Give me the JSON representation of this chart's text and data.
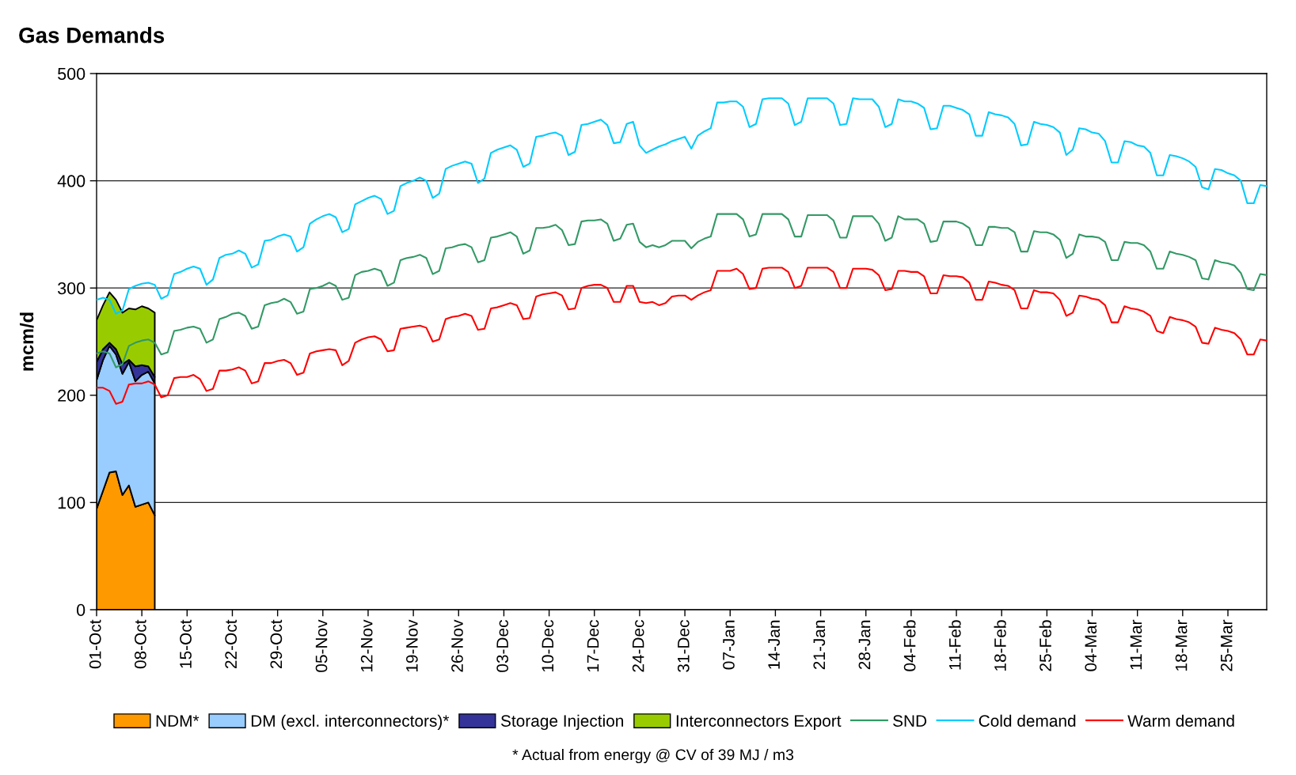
{
  "chart_data": {
    "type": "area",
    "stacked": true,
    "title": "Gas Demands",
    "ylabel": "mcm/d",
    "annotations": [
      "* Actual from energy @ CV of 39 MJ / m3"
    ],
    "categories": [
      "01-Oct",
      null,
      null,
      null,
      null,
      null,
      null,
      "08-Oct",
      null,
      null,
      null,
      null,
      null,
      null,
      "15-Oct",
      null,
      null,
      null,
      null,
      null,
      null,
      "22-Oct",
      null,
      null,
      null,
      null,
      null,
      null,
      "29-Oct",
      null,
      null,
      null,
      null,
      null,
      null,
      "05-Nov",
      null,
      null,
      null,
      null,
      null,
      null,
      "12-Nov",
      null,
      null,
      null,
      null,
      null,
      null,
      "19-Nov",
      null,
      null,
      null,
      null,
      null,
      null,
      "26-Nov",
      null,
      null,
      null,
      null,
      null,
      null,
      "03-Dec",
      null,
      null,
      null,
      null,
      null,
      null,
      "10-Dec",
      null,
      null,
      null,
      null,
      null,
      null,
      "17-Dec",
      null,
      null,
      null,
      null,
      null,
      null,
      "24-Dec",
      null,
      null,
      null,
      null,
      null,
      null,
      "31-Dec",
      null,
      null,
      null,
      null,
      null,
      null,
      "07-Jan",
      null,
      null,
      null,
      null,
      null,
      null,
      "14-Jan",
      null,
      null,
      null,
      null,
      null,
      null,
      "21-Jan",
      null,
      null,
      null,
      null,
      null,
      null,
      "28-Jan",
      null,
      null,
      null,
      null,
      null,
      null,
      "04-Feb",
      null,
      null,
      null,
      null,
      null,
      null,
      "11-Feb",
      null,
      null,
      null,
      null,
      null,
      null,
      "18-Feb",
      null,
      null,
      null,
      null,
      null,
      null,
      "25-Feb",
      null,
      null,
      null,
      null,
      null,
      null,
      "04-Mar",
      null,
      null,
      null,
      null,
      null,
      null,
      "11-Mar",
      null,
      null,
      null,
      null,
      null,
      null,
      "18-Mar",
      null,
      null,
      null,
      null,
      null,
      null,
      "25-Mar",
      null,
      null,
      null,
      null,
      null,
      null
    ],
    "ylim": [
      0,
      500
    ],
    "yticks": [
      0,
      100,
      200,
      300,
      400,
      500
    ],
    "grid": "y",
    "legend": "bottom",
    "series": [
      {
        "name": "NDM*",
        "color": "#ff9900",
        "values": [
          94,
          111,
          128,
          129,
          107,
          116,
          96,
          98,
          100,
          88,
          null,
          null,
          null,
          null,
          null,
          null,
          null,
          null,
          null,
          null,
          null,
          null,
          null,
          null,
          null,
          null,
          null,
          null,
          null,
          null,
          null,
          null,
          null,
          null,
          null,
          null,
          null,
          null,
          null,
          null,
          null,
          null,
          null,
          null,
          null,
          null,
          null,
          null,
          null,
          null,
          null,
          null,
          null,
          null,
          null,
          null,
          null,
          null,
          null,
          null,
          null,
          null,
          null,
          null,
          null,
          null,
          null,
          null,
          null,
          null,
          null,
          null,
          null,
          null,
          null,
          null,
          null,
          null,
          null,
          null,
          null,
          null,
          null,
          null,
          null,
          null,
          null,
          null,
          null,
          null,
          null,
          null,
          null,
          null,
          null,
          null,
          null,
          null,
          null,
          null,
          null,
          null,
          null,
          null,
          null,
          null,
          null,
          null,
          null,
          null,
          null,
          null,
          null,
          null,
          null,
          null,
          null,
          null,
          null,
          null,
          null,
          null,
          null,
          null,
          null,
          null,
          null,
          null,
          null,
          null,
          null,
          null,
          null,
          null,
          null,
          null,
          null,
          null,
          null,
          null,
          null,
          null,
          null,
          null,
          null,
          null,
          null,
          null,
          null,
          null,
          null,
          null,
          null,
          null,
          null,
          null,
          null,
          null,
          null,
          null,
          null,
          null,
          null,
          null,
          null,
          null,
          null,
          null,
          null,
          null,
          null,
          null,
          null,
          null,
          null,
          null,
          null,
          null,
          null,
          null,
          null,
          null
        ]
      },
      {
        "name": "DM (excl. interconnectors)*",
        "color": "#99ccff",
        "values": [
          120,
          122,
          118,
          109,
          113,
          115,
          117,
          121,
          122,
          123,
          null,
          null,
          null,
          null,
          null,
          null,
          null,
          null,
          null,
          null,
          null,
          null,
          null,
          null,
          null,
          null,
          null,
          null,
          null,
          null,
          null,
          null,
          null,
          null,
          null,
          null,
          null,
          null,
          null,
          null,
          null,
          null,
          null,
          null,
          null,
          null,
          null,
          null,
          null,
          null,
          null,
          null,
          null,
          null,
          null,
          null,
          null,
          null,
          null,
          null,
          null,
          null,
          null,
          null,
          null,
          null,
          null,
          null,
          null,
          null,
          null,
          null,
          null,
          null,
          null,
          null,
          null,
          null,
          null,
          null,
          null,
          null,
          null,
          null,
          null,
          null,
          null,
          null,
          null,
          null,
          null,
          null,
          null,
          null,
          null,
          null,
          null,
          null,
          null,
          null,
          null,
          null,
          null,
          null,
          null,
          null,
          null,
          null,
          null,
          null,
          null,
          null,
          null,
          null,
          null,
          null,
          null,
          null,
          null,
          null,
          null,
          null,
          null,
          null,
          null,
          null,
          null,
          null,
          null,
          null,
          null,
          null,
          null,
          null,
          null,
          null,
          null,
          null,
          null,
          null,
          null,
          null,
          null,
          null,
          null,
          null,
          null,
          null,
          null,
          null,
          null,
          null,
          null,
          null,
          null,
          null,
          null,
          null,
          null,
          null,
          null,
          null,
          null,
          null,
          null,
          null,
          null,
          null,
          null,
          null,
          null,
          null,
          null,
          null,
          null,
          null,
          null,
          null,
          null,
          null,
          null,
          null
        ]
      },
      {
        "name": "Storage Injection",
        "color": "#333399",
        "values": [
          17,
          10,
          3,
          5,
          9,
          2,
          14,
          9,
          5,
          6,
          null,
          null,
          null,
          null,
          null,
          null,
          null,
          null,
          null,
          null,
          null,
          null,
          null,
          null,
          null,
          null,
          null,
          null,
          null,
          null,
          null,
          null,
          null,
          null,
          null,
          null,
          null,
          null,
          null,
          null,
          null,
          null,
          null,
          null,
          null,
          null,
          null,
          null,
          null,
          null,
          null,
          null,
          null,
          null,
          null,
          null,
          null,
          null,
          null,
          null,
          null,
          null,
          null,
          null,
          null,
          null,
          null,
          null,
          null,
          null,
          null,
          null,
          null,
          null,
          null,
          null,
          null,
          null,
          null,
          null,
          null,
          null,
          null,
          null,
          null,
          null,
          null,
          null,
          null,
          null,
          null,
          null,
          null,
          null,
          null,
          null,
          null,
          null,
          null,
          null,
          null,
          null,
          null,
          null,
          null,
          null,
          null,
          null,
          null,
          null,
          null,
          null,
          null,
          null,
          null,
          null,
          null,
          null,
          null,
          null,
          null,
          null,
          null,
          null,
          null,
          null,
          null,
          null,
          null,
          null,
          null,
          null,
          null,
          null,
          null,
          null,
          null,
          null,
          null,
          null,
          null,
          null,
          null,
          null,
          null,
          null,
          null,
          null,
          null,
          null,
          null,
          null,
          null,
          null,
          null,
          null,
          null,
          null,
          null,
          null,
          null,
          null,
          null,
          null,
          null,
          null,
          null,
          null,
          null,
          null,
          null,
          null,
          null,
          null,
          null,
          null,
          null,
          null,
          null,
          null,
          null,
          null
        ]
      },
      {
        "name": "Interconnectors Export",
        "color": "#99cc00",
        "values": [
          39,
          41,
          47,
          46,
          48,
          48,
          53,
          55,
          54,
          60,
          null,
          null,
          null,
          null,
          null,
          null,
          null,
          null,
          null,
          null,
          null,
          null,
          null,
          null,
          null,
          null,
          null,
          null,
          null,
          null,
          null,
          null,
          null,
          null,
          null,
          null,
          null,
          null,
          null,
          null,
          null,
          null,
          null,
          null,
          null,
          null,
          null,
          null,
          null,
          null,
          null,
          null,
          null,
          null,
          null,
          null,
          null,
          null,
          null,
          null,
          null,
          null,
          null,
          null,
          null,
          null,
          null,
          null,
          null,
          null,
          null,
          null,
          null,
          null,
          null,
          null,
          null,
          null,
          null,
          null,
          null,
          null,
          null,
          null,
          null,
          null,
          null,
          null,
          null,
          null,
          null,
          null,
          null,
          null,
          null,
          null,
          null,
          null,
          null,
          null,
          null,
          null,
          null,
          null,
          null,
          null,
          null,
          null,
          null,
          null,
          null,
          null,
          null,
          null,
          null,
          null,
          null,
          null,
          null,
          null,
          null,
          null,
          null,
          null,
          null,
          null,
          null,
          null,
          null,
          null,
          null,
          null,
          null,
          null,
          null,
          null,
          null,
          null,
          null,
          null,
          null,
          null,
          null,
          null,
          null,
          null,
          null,
          null,
          null,
          null,
          null,
          null,
          null,
          null,
          null,
          null,
          null,
          null,
          null,
          null,
          null,
          null,
          null,
          null,
          null,
          null,
          null,
          null,
          null,
          null,
          null,
          null,
          null,
          null,
          null,
          null,
          null,
          null,
          null,
          null,
          null,
          null
        ]
      },
      {
        "name": "SND",
        "type": "line",
        "color": "#339966",
        "values": [
          239,
          241,
          239,
          226,
          229,
          246,
          249,
          251,
          252,
          249,
          238,
          240,
          260,
          261,
          263,
          264,
          262,
          249,
          252,
          271,
          273,
          276,
          277,
          274,
          262,
          264,
          284,
          286,
          287,
          290,
          287,
          276,
          278,
          299,
          300,
          302,
          305,
          302,
          289,
          291,
          312,
          315,
          316,
          318,
          316,
          302,
          305,
          326,
          328,
          329,
          331,
          328,
          313,
          316,
          337,
          338,
          340,
          341,
          338,
          324,
          326,
          347,
          348,
          350,
          352,
          348,
          332,
          335,
          356,
          356,
          357,
          359,
          354,
          340,
          341,
          362,
          363,
          363,
          364,
          360,
          344,
          346,
          359,
          360,
          343,
          338,
          340,
          338,
          340,
          344,
          344,
          344,
          337,
          343,
          346,
          348,
          369,
          369,
          369,
          369,
          364,
          348,
          350,
          369,
          369,
          369,
          369,
          364,
          348,
          348,
          368,
          368,
          368,
          368,
          363,
          347,
          347,
          367,
          367,
          367,
          367,
          360,
          344,
          347,
          367,
          364,
          364,
          364,
          360,
          343,
          344,
          362,
          362,
          362,
          360,
          356,
          340,
          340,
          357,
          357,
          356,
          356,
          352,
          334,
          334,
          353,
          352,
          352,
          350,
          345,
          328,
          332,
          350,
          348,
          348,
          347,
          343,
          326,
          326,
          343,
          342,
          342,
          340,
          334,
          318,
          318,
          334,
          332,
          331,
          329,
          326,
          309,
          308,
          326,
          324,
          323,
          321,
          314,
          299,
          298,
          313,
          312
        ]
      },
      {
        "name": "Cold demand",
        "type": "line",
        "color": "#00ccff",
        "values": [
          289,
          291,
          289,
          276,
          279,
          299,
          302,
          304,
          305,
          303,
          290,
          293,
          313,
          315,
          318,
          320,
          318,
          303,
          308,
          328,
          331,
          332,
          335,
          332,
          319,
          322,
          344,
          345,
          348,
          350,
          348,
          334,
          338,
          360,
          364,
          367,
          369,
          366,
          352,
          355,
          378,
          381,
          384,
          386,
          383,
          369,
          372,
          395,
          398,
          400,
          403,
          400,
          384,
          388,
          411,
          414,
          416,
          418,
          416,
          398,
          402,
          426,
          429,
          431,
          433,
          429,
          413,
          416,
          441,
          442,
          444,
          445,
          442,
          424,
          427,
          452,
          453,
          455,
          457,
          452,
          435,
          436,
          453,
          455,
          433,
          426,
          429,
          432,
          434,
          437,
          439,
          441,
          430,
          442,
          446,
          449,
          473,
          473,
          474,
          474,
          469,
          450,
          453,
          476,
          477,
          477,
          477,
          472,
          452,
          455,
          477,
          477,
          477,
          477,
          472,
          452,
          453,
          477,
          476,
          476,
          476,
          469,
          450,
          453,
          476,
          474,
          474,
          472,
          468,
          448,
          449,
          470,
          470,
          468,
          466,
          462,
          442,
          442,
          464,
          462,
          461,
          459,
          453,
          433,
          434,
          455,
          453,
          452,
          450,
          445,
          424,
          429,
          449,
          448,
          445,
          444,
          437,
          417,
          417,
          437,
          436,
          433,
          432,
          426,
          405,
          405,
          424,
          423,
          421,
          418,
          413,
          394,
          392,
          411,
          410,
          407,
          405,
          400,
          379,
          379,
          396,
          395
        ]
      },
      {
        "name": "Warm demand",
        "type": "line",
        "color": "#ff0000",
        "values": [
          207,
          207,
          204,
          192,
          194,
          210,
          211,
          211,
          213,
          210,
          198,
          200,
          216,
          217,
          217,
          219,
          215,
          204,
          206,
          223,
          223,
          224,
          226,
          223,
          211,
          213,
          230,
          230,
          232,
          233,
          230,
          219,
          221,
          239,
          241,
          242,
          243,
          242,
          228,
          232,
          249,
          252,
          254,
          255,
          252,
          241,
          242,
          262,
          263,
          264,
          265,
          263,
          250,
          252,
          271,
          273,
          274,
          276,
          274,
          261,
          262,
          281,
          282,
          284,
          286,
          284,
          271,
          272,
          292,
          294,
          295,
          296,
          293,
          280,
          281,
          300,
          302,
          303,
          303,
          300,
          287,
          287,
          302,
          302,
          287,
          286,
          287,
          284,
          286,
          292,
          293,
          293,
          289,
          293,
          296,
          298,
          316,
          316,
          316,
          318,
          313,
          299,
          300,
          318,
          319,
          319,
          319,
          315,
          300,
          302,
          319,
          319,
          319,
          319,
          315,
          300,
          300,
          318,
          318,
          318,
          317,
          312,
          298,
          299,
          316,
          316,
          315,
          315,
          311,
          295,
          295,
          312,
          311,
          311,
          310,
          305,
          289,
          289,
          306,
          305,
          303,
          302,
          298,
          281,
          281,
          298,
          296,
          296,
          295,
          289,
          274,
          277,
          293,
          292,
          290,
          289,
          284,
          268,
          268,
          283,
          281,
          280,
          278,
          274,
          260,
          258,
          273,
          271,
          270,
          268,
          264,
          249,
          248,
          263,
          261,
          260,
          258,
          252,
          238,
          238,
          252,
          251
        ]
      }
    ]
  }
}
